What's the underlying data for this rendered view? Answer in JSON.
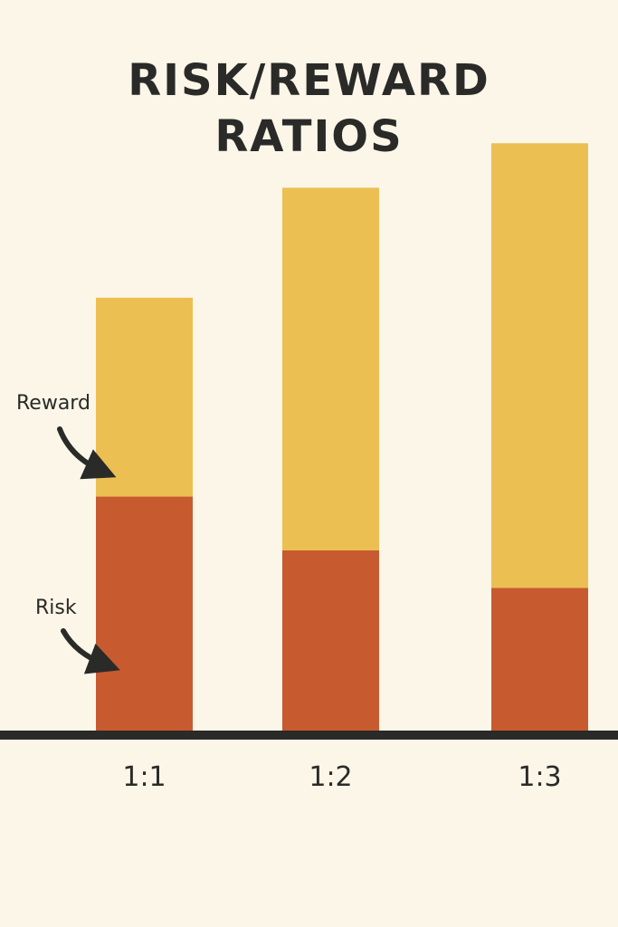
{
  "chart_data": {
    "type": "bar",
    "stacked": true,
    "title": "RISK/REWARD RATIOS",
    "title_lines": [
      "RISK/REWARD",
      "RATIOS"
    ],
    "categories": [
      "1:1",
      "1:2",
      "1:3"
    ],
    "series": [
      {
        "values": [
          1.0,
          0.77,
          0.61
        ],
        "color": "#c85a30"
      },
      {
        "values": [
          0.85,
          1.55,
          1.9
        ],
        "color": "#ebbf52"
      }
    ],
    "ylim": [
      0,
      2.6
    ],
    "grid": false,
    "annotations": [
      {
        "text": "Reward",
        "points_to": "Reward segment of 1:1 bar"
      },
      {
        "text": "Risk",
        "points_to": "Risk segment of 1:1 bar"
      }
    ]
  },
  "colors": {
    "background": "#fcf6e8",
    "risk": "#c85a30",
    "reward": "#ebbf52",
    "axis": "#2a2a28",
    "text": "#2a2a28"
  }
}
